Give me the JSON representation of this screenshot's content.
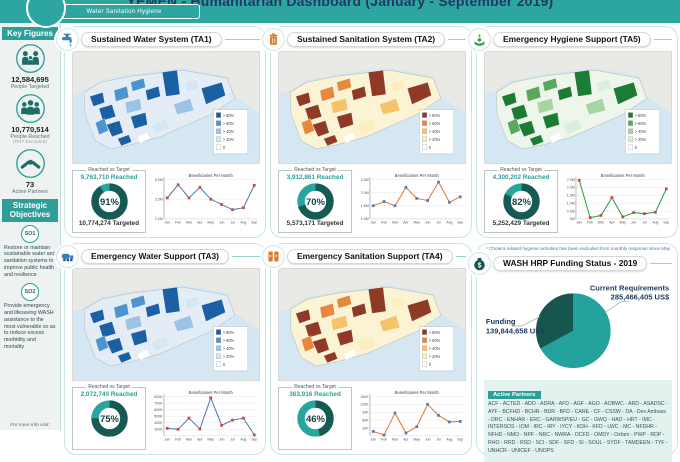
{
  "header": {
    "title": "YEMEN - Humanitarian Dashboard (January - September 2019)",
    "logo_label": "Water Sanitation Hygiene"
  },
  "sidebar": {
    "key_figures_title": "Key Figures",
    "figures": [
      {
        "icon": "family-icon",
        "value": "12,584,695",
        "label": "People Targeted",
        "sublabel": ""
      },
      {
        "icon": "people-group-icon",
        "value": "10,770,514",
        "label": "People Reached",
        "sublabel": "(RRT  Excluded)"
      },
      {
        "icon": "handshake-icon",
        "value": "73",
        "label": "Active Partners",
        "sublabel": ""
      }
    ],
    "strategic_title": "Strategic Objectives",
    "objectives": [
      {
        "badge": "SO1",
        "text": "Restore or maintain sustainable water and sanitation systems to improve public health and resilience"
      },
      {
        "badge": "SO2",
        "text": "Provide emergency and lifesaving WASH assistance to the most vulnerable so as to reduce excess morbidity and mortality"
      }
    ],
    "footer_note": "For more info visit:"
  },
  "months": [
    "Jan",
    "Feb",
    "Mar",
    "Apr",
    "May",
    "Jun",
    "Jul",
    "Aug",
    "Sep"
  ],
  "map_legend_labels": [
    "> 80%",
    "> 60%",
    "> 40%",
    "> 20%",
    "0"
  ],
  "gauge_box_title": "Reached vs Target",
  "footnote": "* Cholera related hygiene activities has been excluded from monthly response since May",
  "panels": [
    {
      "id": "ta1",
      "title": "Sustained Water System (TA1)",
      "icon": "faucet-icon",
      "scheme": "blue",
      "reached": "9,763,710",
      "reached_word": "Reached",
      "pct": 91,
      "targeted": "10,774,274",
      "targeted_word": "Targeted",
      "chart_index": 0
    },
    {
      "id": "ta2",
      "title": "Sustained Sanitation System (TA2)",
      "icon": "sanitation-bin-icon",
      "scheme": "orange",
      "reached": "3,912,861",
      "reached_word": "Reached",
      "pct": 70,
      "targeted": "5,573,171",
      "targeted_word": "Targeted",
      "chart_index": 1
    },
    {
      "id": "ta5",
      "title": "Emergency Hygiene Support (TA5)",
      "icon": "hygiene-hand-icon",
      "scheme": "green",
      "reached": "4,300,202",
      "reached_word": "Reached",
      "pct": 82,
      "targeted": "5,252,429",
      "targeted_word": "Targeted",
      "chart_index": 2
    },
    {
      "id": "ta3",
      "title": "Emergency Water Support (TA3)",
      "icon": "water-truck-icon",
      "scheme": "blue",
      "reached": "2,072,740",
      "reached_word": "Reached",
      "pct": 75,
      "targeted": "",
      "targeted_word": "",
      "chart_index": 3
    },
    {
      "id": "ta4",
      "title": "Emergency Sanitation Support (TA4)",
      "icon": "latrine-icon",
      "scheme": "orange",
      "reached": "363,916",
      "reached_word": "Reached",
      "pct": 46,
      "targeted": "",
      "targeted_word": "",
      "chart_index": 4
    }
  ],
  "funding": {
    "title": "WASH HRP Funding Status - 2019",
    "icon": "money-bag-icon",
    "requirements_label": "Current Requirements",
    "requirements_value": "285,466,405",
    "funding_label": "Funding",
    "funding_value": "139,844,658",
    "currency": "US$",
    "partners_title": "Active Partners",
    "partners": "ACF - ACTED - ADO - ADRA - AFD - AGF - AGO - AOBWC - ARD - ASADSC - AYF - BCFHD - BCHR - BDR - BFD - CARE - CF - CSSW - DA - Dev Ambass - DRC - ENHAR - ERC - GARWSP/EU - GC - GWQ - HAD - HRT - IMC - INTERSOS - IOM - IRC - IRY - IYCY - KDH - KFD - LWC - MC - NFDHR - NFHD - NMO - NPF - NRC - NWRA - OCFD - OMDY - Oxfam - PWP - RDP - RHO - RRD - RSD - SCI - SDF - SFD - SI - SOUL - SYDF - TAMDEEN - TYF - UNHCR - UNICEF - UNOPS"
  },
  "chart_data": [
    {
      "id": "ta1-beneficiaries",
      "type": "line",
      "title": "Beneficiaries Per Month",
      "x": [
        "Jan",
        "Feb",
        "Mar",
        "Apr",
        "May",
        "Jun",
        "Jul",
        "Aug",
        "Sep"
      ],
      "values": [
        3.6,
        4.6,
        3.6,
        4.4,
        3.5,
        3.1,
        2.7,
        2.85,
        4.55
      ],
      "unit": "M",
      "ylim": [
        2.0,
        5.0
      ],
      "yticks": [
        {
          "v": 2.0,
          "label": "2.0M"
        },
        {
          "v": 3.5,
          "label": "3.5M"
        },
        {
          "v": 5.0,
          "label": "5.0M"
        }
      ],
      "line_color": "#4f81bd",
      "marker_color": "#c0504d",
      "grid": true,
      "legend": "none"
    },
    {
      "id": "ta2-beneficiaries",
      "type": "line",
      "title": "Beneficiaries Per Month",
      "x": [
        "Jan",
        "Feb",
        "Mar",
        "Apr",
        "May",
        "Jun",
        "Jul",
        "Aug",
        "Sep"
      ],
      "values": [
        1.5,
        1.66,
        1.5,
        2.2,
        1.78,
        1.7,
        2.4,
        1.63,
        1.84
      ],
      "unit": "M",
      "ylim": [
        1.0,
        2.5
      ],
      "yticks": [
        {
          "v": 1.0,
          "label": "1.0M"
        },
        {
          "v": 1.5,
          "label": "1.5M"
        },
        {
          "v": 2.0,
          "label": "2.0M"
        },
        {
          "v": 2.5,
          "label": "2.5M"
        }
      ],
      "line_color": "#e8793a",
      "marker_color": "#4f81bd",
      "grid": true,
      "legend": "none"
    },
    {
      "id": "ta5-beneficiaries",
      "type": "line",
      "title": "Beneficiaries Per Month",
      "x": [
        "Jan",
        "Feb",
        "Mar",
        "Apr",
        "May",
        "Jun",
        "Jul",
        "Aug",
        "Sep"
      ],
      "values": [
        2.45,
        0.08,
        0.22,
        1.35,
        0.13,
        0.4,
        0.33,
        0.42,
        1.9
      ],
      "unit": "M",
      "ylim": [
        0,
        2.5
      ],
      "yticks": [
        {
          "v": 0,
          "label": "0M"
        },
        {
          "v": 0.5,
          "label": "0.5M"
        },
        {
          "v": 1.0,
          "label": "1.0M"
        },
        {
          "v": 1.5,
          "label": "1.5M"
        },
        {
          "v": 2.0,
          "label": "2.0M"
        },
        {
          "v": 2.5,
          "label": "2.5M"
        }
      ],
      "line_color": "#2aa64a",
      "marker_color": "#c0504d",
      "grid": true,
      "legend": "none"
    },
    {
      "id": "ta3-beneficiaries",
      "type": "line",
      "title": "Beneficiaries Per Month",
      "x": [
        "Jan",
        "Feb",
        "Mar",
        "Apr",
        "May",
        "Jun",
        "Jul",
        "Aug",
        "Sep"
      ],
      "values": [
        315,
        300,
        470,
        305,
        780,
        360,
        440,
        470,
        215
      ],
      "unit": "K",
      "ylim": [
        200,
        800
      ],
      "yticks": [
        {
          "v": 300,
          "label": "300K"
        },
        {
          "v": 400,
          "label": "400K"
        },
        {
          "v": 500,
          "label": "500K"
        },
        {
          "v": 600,
          "label": "600K"
        },
        {
          "v": 700,
          "label": "700K"
        },
        {
          "v": 800,
          "label": "800K"
        }
      ],
      "line_color": "#4f81bd",
      "marker_color": "#c0504d",
      "grid": true,
      "legend": "none"
    },
    {
      "id": "ta4-beneficiaries",
      "type": "line",
      "title": "Beneficiaries Per Month",
      "x": [
        "Jan",
        "Feb",
        "Mar",
        "Apr",
        "May",
        "Jun",
        "Jul",
        "Aug",
        "Sep"
      ],
      "values": [
        17,
        3,
        87,
        11,
        35,
        120,
        78,
        53,
        55
      ],
      "unit": "K",
      "ylim": [
        0,
        150
      ],
      "yticks": [
        {
          "v": 30,
          "label": "30K"
        },
        {
          "v": 60,
          "label": "60K"
        },
        {
          "v": 90,
          "label": "90K"
        },
        {
          "v": 120,
          "label": "120K"
        },
        {
          "v": 150,
          "label": "150K"
        }
      ],
      "line_color": "#e8793a",
      "marker_color": "#4f81bd",
      "grid": true,
      "legend": "none"
    },
    {
      "id": "reached-vs-target-gauges",
      "type": "donut",
      "items": [
        {
          "panel": "TA1",
          "pct": 91,
          "reached": 9763710,
          "targeted": 10774274
        },
        {
          "panel": "TA2",
          "pct": 70,
          "reached": 3912861,
          "targeted": 5573171
        },
        {
          "panel": "TA5",
          "pct": 82,
          "reached": 4300202,
          "targeted": 5252429
        },
        {
          "panel": "TA3",
          "pct": 75,
          "reached": 2072740,
          "targeted": null
        },
        {
          "panel": "TA4",
          "pct": 46,
          "reached": 363916,
          "targeted": null
        }
      ],
      "colors": {
        "reached_arc": "#175a54",
        "remainder_arc": "#27a69e"
      }
    },
    {
      "id": "hrp-funding",
      "type": "pie",
      "labels": [
        "Current Requirements",
        "Funding"
      ],
      "values": [
        285466405,
        139844658
      ],
      "unit": "US$",
      "colors": [
        "#23a29d",
        "#17554f"
      ],
      "legend": "callout-labels"
    }
  ],
  "colors": {
    "topbar_teal": "#2da6a1",
    "chip_teal": "#2f9e98",
    "title_navy": "#1e3a63",
    "panel_border": "#c9e4e1",
    "reached_teal": "#2aa198",
    "donut_dark": "#175a54",
    "donut_light": "#27a69e"
  }
}
